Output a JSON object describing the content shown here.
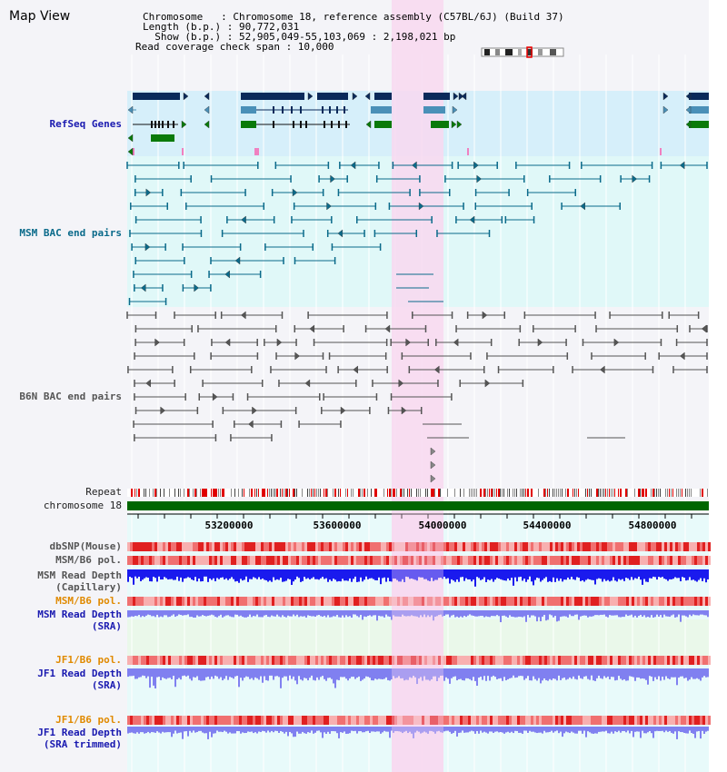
{
  "page": {
    "title": "Map View"
  },
  "info": {
    "chromosome_line": "Chromosome   : Chromosome 18, reference assembly (C57BL/6J) (Build 37)",
    "length_line": "Length (b.p.) : 90,772,031",
    "show_line": "  Show (b.p.) : 52,905,049-55,103,069 : 2,198,021 bp",
    "coverage_line": "Read coverage check span : 10,000"
  },
  "tracks": {
    "refseq": "RefSeq Genes",
    "msm_bac": "MSM BAC end pairs",
    "b6n_bac": "B6N BAC end pairs",
    "repeat": "Repeat",
    "chromosome": "chromosome 18",
    "dbsnp": "dbSNP(Mouse)",
    "msm_b6_pol_1": "MSM/B6 pol.",
    "msm_read_depth_cap_1": "MSM Read Depth",
    "msm_read_depth_cap_2": "(Capillary)",
    "msm_b6_pol_2": "MSM/B6 pol.",
    "msm_read_depth_sra_1": "MSM Read Depth",
    "msm_read_depth_sra_2": "(SRA)",
    "jf1_b6_pol_1": "JF1/B6 pol.",
    "jf1_read_depth_sra_1": "JF1 Read Depth",
    "jf1_read_depth_sra_2": "(SRA)",
    "jf1_b6_pol_2": "JF1/B6 pol.",
    "jf1_read_depth_trim_1": "JF1 Read Depth",
    "jf1_read_depth_trim_2": "(SRA trimmed)"
  },
  "axis": {
    "ticks": [
      "53200000",
      "53600000",
      "54000000",
      "54400000",
      "54800000"
    ]
  },
  "colors": {
    "highlight": "#f8d8f0",
    "refseq_bg": "#d6effa",
    "bac_bg": "#e0f8f8",
    "gene_dark": "#0a2a5a",
    "gene_teal": "#4a90b8",
    "gene_green": "#0a7a0a",
    "chromosome_bar": "#006600",
    "depth_blue": "#1a1aee",
    "depth_light": "#8080f0"
  }
}
